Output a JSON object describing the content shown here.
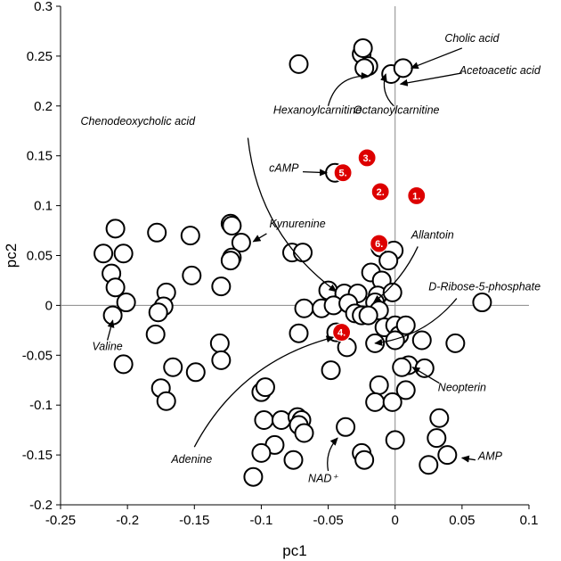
{
  "chart_data": {
    "type": "scatter",
    "xlabel": "pc1",
    "ylabel": "pc2",
    "xlim": [
      -0.25,
      0.1
    ],
    "ylim": [
      -0.2,
      0.3
    ],
    "xticks": [
      -0.25,
      -0.2,
      -0.15,
      -0.1,
      -0.05,
      0,
      0.05,
      0.1
    ],
    "yticks": [
      -0.2,
      -0.15,
      -0.1,
      -0.05,
      0,
      0.05,
      0.1,
      0.15,
      0.2,
      0.25,
      0.3
    ],
    "xtick_labels": [
      "-0.25",
      "-0.2",
      "-0.15",
      "-0.1",
      "-0.05",
      "0",
      "0.05",
      "0.1"
    ],
    "ytick_labels": [
      "-0.2",
      "-0.15",
      "-0.1",
      "-0.05",
      "0",
      "0.05",
      "0.1",
      "0.15",
      "0.2",
      "0.25",
      "0.3"
    ],
    "colors": {
      "open_marker": "#000000",
      "highlight_marker": "#dd0000"
    },
    "points": [
      [
        -0.072,
        0.242
      ],
      [
        -0.025,
        0.252
      ],
      [
        -0.024,
        0.258
      ],
      [
        -0.02,
        0.24
      ],
      [
        -0.023,
        0.238
      ],
      [
        -0.003,
        0.232
      ],
      [
        0.006,
        0.238
      ],
      [
        -0.209,
        0.077
      ],
      [
        -0.218,
        0.052
      ],
      [
        -0.203,
        0.052
      ],
      [
        -0.212,
        0.032
      ],
      [
        -0.209,
        0.018
      ],
      [
        -0.201,
        0.003
      ],
      [
        -0.211,
        -0.01
      ],
      [
        -0.178,
        0.073
      ],
      [
        -0.153,
        0.07
      ],
      [
        -0.152,
        0.03
      ],
      [
        -0.171,
        0.013
      ],
      [
        -0.173,
        -0.001
      ],
      [
        -0.177,
        -0.007
      ],
      [
        -0.179,
        -0.029
      ],
      [
        -0.203,
        -0.059
      ],
      [
        -0.123,
        0.082
      ],
      [
        -0.122,
        0.08
      ],
      [
        -0.115,
        0.063
      ],
      [
        -0.122,
        0.048
      ],
      [
        -0.123,
        0.045
      ],
      [
        -0.13,
        0.019
      ],
      [
        -0.131,
        -0.038
      ],
      [
        -0.13,
        -0.055
      ],
      [
        -0.166,
        -0.062
      ],
      [
        -0.149,
        -0.067
      ],
      [
        -0.175,
        -0.083
      ],
      [
        -0.171,
        -0.096
      ],
      [
        -0.077,
        0.053
      ],
      [
        -0.069,
        0.053
      ],
      [
        -0.045,
        0.133
      ],
      [
        -0.011,
        0.058
      ],
      [
        -0.001,
        0.055
      ],
      [
        -0.005,
        0.045
      ],
      [
        -0.05,
        0.015
      ],
      [
        -0.038,
        0.012
      ],
      [
        -0.028,
        0.012
      ],
      [
        -0.018,
        0.033
      ],
      [
        -0.01,
        0.025
      ],
      [
        -0.013,
        0.01
      ],
      [
        -0.015,
        0.003
      ],
      [
        -0.002,
        0.013
      ],
      [
        -0.068,
        -0.003
      ],
      [
        -0.055,
        -0.003
      ],
      [
        -0.046,
        0.0
      ],
      [
        -0.035,
        0.002
      ],
      [
        -0.03,
        -0.008
      ],
      [
        -0.025,
        -0.01
      ],
      [
        -0.012,
        -0.005
      ],
      [
        -0.008,
        -0.022
      ],
      [
        0.0,
        -0.02
      ],
      [
        0.003,
        -0.03
      ],
      [
        0.0,
        -0.035
      ],
      [
        -0.015,
        -0.038
      ],
      [
        -0.02,
        -0.01
      ],
      [
        0.008,
        -0.02
      ],
      [
        -0.044,
        -0.027
      ],
      [
        -0.036,
        -0.042
      ],
      [
        -0.072,
        -0.028
      ],
      [
        -0.048,
        -0.065
      ],
      [
        0.02,
        -0.035
      ],
      [
        0.065,
        0.003
      ],
      [
        0.045,
        -0.038
      ],
      [
        0.01,
        -0.06
      ],
      [
        0.005,
        -0.062
      ],
      [
        0.022,
        -0.063
      ],
      [
        0.008,
        -0.085
      ],
      [
        -0.012,
        -0.08
      ],
      [
        -0.015,
        -0.097
      ],
      [
        -0.002,
        -0.097
      ],
      [
        -0.1,
        -0.087
      ],
      [
        -0.097,
        -0.082
      ],
      [
        -0.098,
        -0.115
      ],
      [
        -0.085,
        -0.115
      ],
      [
        -0.073,
        -0.112
      ],
      [
        -0.07,
        -0.115
      ],
      [
        -0.072,
        -0.12
      ],
      [
        -0.068,
        -0.128
      ],
      [
        -0.09,
        -0.14
      ],
      [
        -0.1,
        -0.148
      ],
      [
        -0.076,
        -0.155
      ],
      [
        -0.106,
        -0.172
      ],
      [
        -0.037,
        -0.122
      ],
      [
        -0.025,
        -0.148
      ],
      [
        -0.023,
        -0.155
      ],
      [
        0.0,
        -0.135
      ],
      [
        0.033,
        -0.113
      ],
      [
        0.031,
        -0.133
      ],
      [
        0.039,
        -0.15
      ],
      [
        0.025,
        -0.16
      ]
    ],
    "highlighted": [
      {
        "label": "1.",
        "x": 0.016,
        "y": 0.11
      },
      {
        "label": "2.",
        "x": -0.011,
        "y": 0.114
      },
      {
        "label": "3.",
        "x": -0.021,
        "y": 0.148
      },
      {
        "label": "4.",
        "x": -0.04,
        "y": -0.027
      },
      {
        "label": "5.",
        "x": -0.039,
        "y": 0.133
      },
      {
        "label": "6.",
        "x": -0.012,
        "y": 0.062
      }
    ],
    "annotations": [
      {
        "text": "Cholic acid",
        "x": 0.037,
        "y": 0.264,
        "anchor": "start",
        "arrow": [
          [
            0.05,
            0.258
          ],
          [
            0.012,
            0.238
          ]
        ],
        "curve": 0
      },
      {
        "text": "Acetoacetic acid",
        "x": 0.048,
        "y": 0.232,
        "anchor": "start",
        "arrow": [
          [
            0.05,
            0.233
          ],
          [
            0.004,
            0.222
          ]
        ],
        "curve": 0
      },
      {
        "text": "Hexanoylcarnitine",
        "x": -0.058,
        "y": 0.192,
        "anchor": "middle",
        "arrow": [
          [
            -0.05,
            0.2
          ],
          [
            -0.02,
            0.23
          ]
        ],
        "curve": -0.4
      },
      {
        "text": "Octanoylcarnitine",
        "x": 0.001,
        "y": 0.192,
        "anchor": "middle",
        "arrow": [
          [
            -0.001,
            0.2
          ],
          [
            -0.007,
            0.232
          ]
        ],
        "curve": -0.3
      },
      {
        "text": "Chenodeoxycholic acid",
        "x": -0.235,
        "y": 0.181,
        "anchor": "start",
        "arrow": [
          [
            -0.11,
            0.168
          ],
          [
            -0.044,
            0.014
          ]
        ],
        "curve": 0.22
      },
      {
        "text": "cAMP",
        "x": -0.072,
        "y": 0.134,
        "anchor": "end",
        "arrow": [
          [
            -0.069,
            0.134
          ],
          [
            -0.051,
            0.133
          ]
        ],
        "curve": 0
      },
      {
        "text": "Kynurenine",
        "x": -0.094,
        "y": 0.078,
        "anchor": "start",
        "arrow": [
          [
            -0.096,
            0.072
          ],
          [
            -0.106,
            0.064
          ]
        ],
        "curve": 0
      },
      {
        "text": "Allantoin",
        "x": 0.012,
        "y": 0.067,
        "anchor": "start",
        "arrow": [
          [
            0.017,
            0.059
          ],
          [
            -0.016,
            0.003
          ]
        ],
        "curve": -0.12
      },
      {
        "text": "D-Ribose-5-phosphate",
        "x": 0.025,
        "y": 0.015,
        "anchor": "start",
        "arrow": [
          [
            0.046,
            0.007
          ],
          [
            -0.015,
            -0.038
          ]
        ],
        "curve": -0.2
      },
      {
        "text": "Valine",
        "x": -0.215,
        "y": -0.045,
        "anchor": "middle",
        "arrow": [
          [
            -0.215,
            -0.035
          ],
          [
            -0.211,
            -0.015
          ]
        ],
        "curve": 0
      },
      {
        "text": "Neopterin",
        "x": 0.032,
        "y": -0.086,
        "anchor": "start",
        "arrow": [
          [
            0.033,
            -0.078
          ],
          [
            0.013,
            -0.062
          ]
        ],
        "curve": 0
      },
      {
        "text": "Adenine",
        "x": -0.152,
        "y": -0.158,
        "anchor": "middle",
        "arrow": [
          [
            -0.15,
            -0.142
          ],
          [
            -0.046,
            -0.032
          ]
        ],
        "curve": -0.22
      },
      {
        "text": "NAD⁺",
        "x": -0.054,
        "y": -0.177,
        "anchor": "middle",
        "arrow": [
          [
            -0.05,
            -0.166
          ],
          [
            -0.043,
            -0.133
          ]
        ],
        "curve": -0.25
      },
      {
        "text": "AMP",
        "x": 0.062,
        "y": -0.155,
        "anchor": "start",
        "arrow": [
          [
            0.06,
            -0.155
          ],
          [
            0.05,
            -0.153
          ]
        ],
        "curve": 0
      }
    ]
  }
}
